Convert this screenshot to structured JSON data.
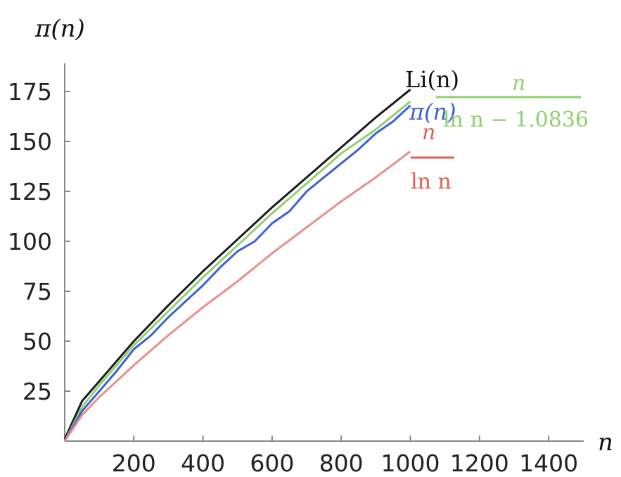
{
  "chart_data": {
    "type": "line",
    "title": "",
    "ylabel": "π(n)",
    "xlabel": "n",
    "xlim": [
      0,
      1500
    ],
    "ylim": [
      0,
      190
    ],
    "x_ticks": [
      "200",
      "400",
      "600",
      "800",
      "1000",
      "1200",
      "1400"
    ],
    "y_ticks": [
      "25",
      "50",
      "75",
      "100",
      "125",
      "150",
      "175"
    ],
    "grid": false,
    "series": [
      {
        "name": "Li(n)",
        "color": "#1a1a1a",
        "x": [
          0,
          50,
          100,
          200,
          300,
          400,
          500,
          600,
          700,
          800,
          900,
          1000
        ],
        "y": [
          1,
          20,
          30,
          50,
          68,
          85,
          101,
          117,
          132,
          147,
          162,
          176
        ]
      },
      {
        "name": "n / (ln n − 1.0836)",
        "color": "#8fd16f",
        "x": [
          0,
          50,
          100,
          200,
          300,
          400,
          500,
          600,
          700,
          800,
          900,
          1000
        ],
        "y": [
          0,
          17,
          28,
          48,
          65,
          82,
          98,
          114,
          129,
          144,
          156,
          170
        ]
      },
      {
        "name": "π(n)",
        "color": "#3e5fd8",
        "x": [
          0,
          50,
          100,
          150,
          200,
          250,
          300,
          350,
          400,
          450,
          500,
          550,
          600,
          650,
          700,
          750,
          800,
          850,
          900,
          950,
          1000
        ],
        "y": [
          0,
          15,
          25,
          35,
          46,
          53,
          62,
          70,
          78,
          87,
          95,
          100,
          109,
          115,
          125,
          132,
          139,
          146,
          154,
          160,
          168
        ]
      },
      {
        "name": "n / ln n",
        "color": "#e88f8a",
        "x": [
          0,
          50,
          100,
          200,
          300,
          400,
          500,
          600,
          700,
          800,
          900,
          1000
        ],
        "y": [
          0,
          13,
          22,
          38,
          53,
          67,
          80,
          94,
          107,
          120,
          132,
          145
        ]
      }
    ],
    "annotations": {
      "li": {
        "text": "Li(n)",
        "color": "#111111"
      },
      "pi": {
        "text": "π(n)",
        "color": "#3e5fd8"
      },
      "green_num": {
        "text": "n",
        "color": "#8fd16f"
      },
      "green_den": {
        "text": "ln n − 1.0836",
        "color": "#8fd16f"
      },
      "red_num": {
        "text": "n",
        "color": "#e06050"
      },
      "red_den": {
        "text": "ln n",
        "color": "#e06050"
      }
    }
  }
}
